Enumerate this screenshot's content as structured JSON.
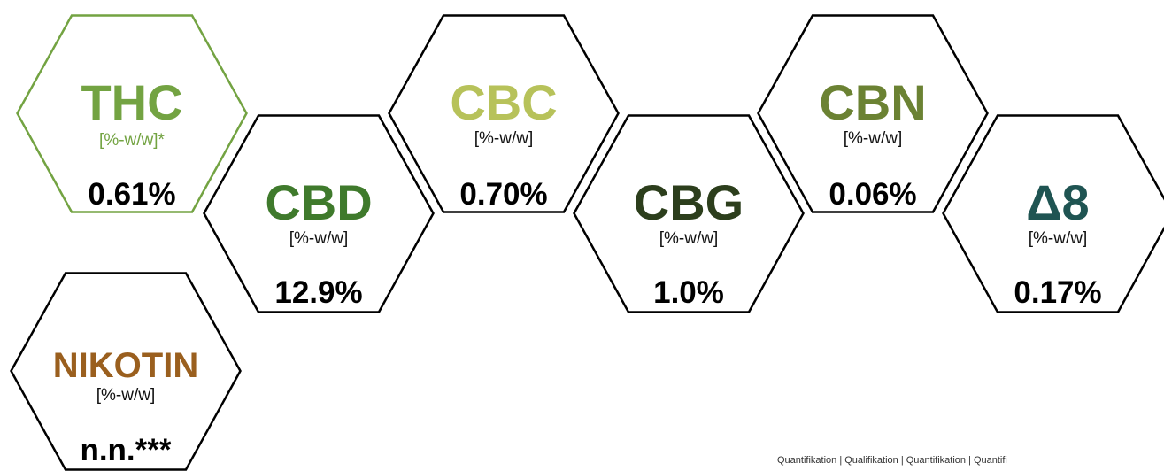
{
  "colors": {
    "thc": "#73a342",
    "cbd": "#3f7a2c",
    "cbc": "#b7c25a",
    "cbg": "#2c3e1c",
    "cbn": "#6b8233",
    "delta8": "#1f5452",
    "nikotin": "#9a5f1e",
    "outline_default": "#000000",
    "outline_thc": "#73a342"
  },
  "cannabinoids": [
    {
      "name": "THC",
      "unit": "[%-w/w]*",
      "value": "0.61%",
      "color": "thc"
    },
    {
      "name": "CBD",
      "unit": "[%-w/w]",
      "value": "12.9%",
      "color": "cbd"
    },
    {
      "name": "CBC",
      "unit": "[%-w/w]",
      "value": "0.70%",
      "color": "cbc"
    },
    {
      "name": "CBG",
      "unit": "[%-w/w]",
      "value": "1.0%",
      "color": "cbg"
    },
    {
      "name": "CBN",
      "unit": "[%-w/w]",
      "value": "0.06%",
      "color": "cbn"
    },
    {
      "name": "Δ8",
      "unit": "[%-w/w]",
      "value": "0.17%",
      "color": "delta8"
    },
    {
      "name": "NIKOTIN",
      "unit": "[%-w/w]",
      "value": "n.n.***",
      "color": "nikotin"
    }
  ],
  "footnote": "Quantifikation | Qualifikation | Quantifikation | Quantifi"
}
